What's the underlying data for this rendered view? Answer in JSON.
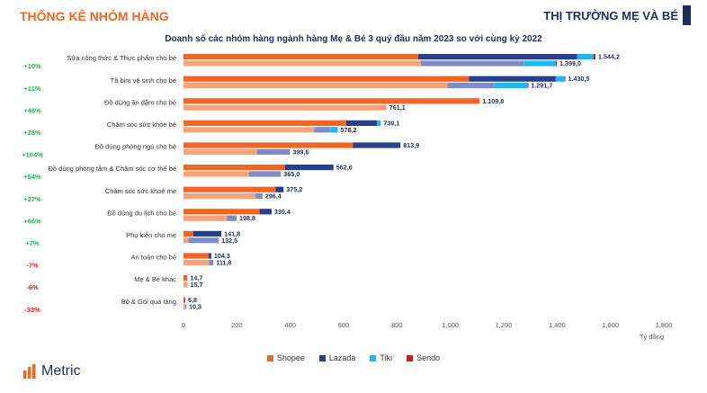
{
  "header": {
    "left_title": "THỐNG KÊ NHÓM HÀNG",
    "right_title": "THỊ TRƯỜNG MẸ VÀ BÉ"
  },
  "brand": {
    "name": "Metric"
  },
  "colors": {
    "shopee": "#f26522",
    "shopee_prev": "#f7a27a",
    "lazada": "#273f8c",
    "lazada_prev": "#7c8fc4",
    "tiki": "#1fb7ec",
    "sendo": "#d7191f",
    "growth_pos": "#22b14c",
    "growth_neg": "#d7191f"
  },
  "chart_data": {
    "type": "bar",
    "orientation": "horizontal",
    "stacked": true,
    "title": "Doanh số các nhóm hàng ngành hàng Mẹ & Bé 3 quý đầu năm 2023 so với cùng kỳ 2022",
    "unit_label": "Tỷ đồng",
    "xlim": [
      0,
      1800
    ],
    "xticks": [
      "0",
      "200",
      "400",
      "600",
      "800",
      "1,000",
      "1,200",
      "1,400",
      "1,600",
      "1,800"
    ],
    "series_names": [
      "Shopee",
      "Lazada",
      "Tiki",
      "Sendo"
    ],
    "categories": [
      {
        "name": "Sữa công thức & Thực phẩm cho bé",
        "growth": "+10%",
        "current": {
          "segments": [
            880,
            595,
            62,
            7
          ],
          "total": "1.544,2"
        },
        "previous": {
          "segments": [
            890,
            385,
            120,
            4
          ],
          "total": "1.399,0"
        }
      },
      {
        "name": "Tã  bỉm  vệ sinh cho bé",
        "growth": "+11%",
        "current": {
          "segments": [
            1070,
            325,
            33,
            3
          ],
          "total": "1.430,5"
        },
        "previous": {
          "segments": [
            990,
            175,
            125,
            2
          ],
          "total": "1.291,7"
        }
      },
      {
        "name": "Đồ dùng ăn dặm cho bé",
        "growth": "+46%",
        "current": {
          "segments": [
            1109.8,
            0,
            0,
            0
          ],
          "total": "1.109,8"
        },
        "previous": {
          "segments": [
            761.1,
            0,
            0,
            0
          ],
          "total": "761,1"
        }
      },
      {
        "name": "Chăm sóc sức khỏe bé",
        "growth": "+28%",
        "current": {
          "segments": [
            610,
            115,
            14,
            0
          ],
          "total": "739,1"
        },
        "previous": {
          "segments": [
            490,
            60,
            28,
            0
          ],
          "total": "578,2"
        }
      },
      {
        "name": "Đồ dùng phòng ngủ cho bé",
        "growth": "+104%",
        "current": {
          "segments": [
            635,
            178,
            0,
            0
          ],
          "total": "813,9"
        },
        "previous": {
          "segments": [
            275,
            124,
            0,
            0
          ],
          "total": "399,6"
        }
      },
      {
        "name": "Đồ dùng phòng tắm & Chăm sóc cơ thể bé",
        "growth": "+54%",
        "current": {
          "segments": [
            380,
            182,
            0,
            0
          ],
          "total": "562,6"
        },
        "previous": {
          "segments": [
            245,
            120,
            0,
            0
          ],
          "total": "365,0"
        }
      },
      {
        "name": "Chăm sóc sức khoẻ mẹ",
        "growth": "+27%",
        "current": {
          "segments": [
            345,
            30,
            0,
            0
          ],
          "total": "375,2"
        },
        "previous": {
          "segments": [
            270,
            26,
            0,
            0
          ],
          "total": "296,4"
        }
      },
      {
        "name": "Đồ dùng du lịch cho bé",
        "growth": "+66%",
        "current": {
          "segments": [
            285,
            45,
            0,
            0
          ],
          "total": "330,4"
        },
        "previous": {
          "segments": [
            162,
            37,
            0,
            0
          ],
          "total": "198,8"
        }
      },
      {
        "name": "Phụ kiện cho mẹ",
        "growth": "+7%",
        "current": {
          "segments": [
            37,
            105,
            0,
            0
          ],
          "total": "141,8"
        },
        "previous": {
          "segments": [
            18,
            114,
            0,
            0
          ],
          "total": "132,5"
        }
      },
      {
        "name": "An toàn cho bé",
        "growth": "-7%",
        "current": {
          "segments": [
            94,
            10,
            0,
            0
          ],
          "total": "104,3"
        },
        "previous": {
          "segments": [
            95,
            17,
            0,
            0
          ],
          "total": "111,8"
        }
      },
      {
        "name": "Mẹ & Bé khác",
        "growth": "-6%",
        "current": {
          "segments": [
            14.7,
            0,
            0,
            0
          ],
          "total": "14,7"
        },
        "previous": {
          "segments": [
            15.7,
            0,
            0,
            0
          ],
          "total": "15,7"
        }
      },
      {
        "name": "Bộ & Gói quà tặng",
        "growth": "-33%",
        "current": {
          "segments": [
            4,
            0,
            0,
            2.8
          ],
          "total": "6,8"
        },
        "previous": {
          "segments": [
            8,
            2.3,
            0,
            0
          ],
          "total": "10,3"
        }
      }
    ]
  }
}
